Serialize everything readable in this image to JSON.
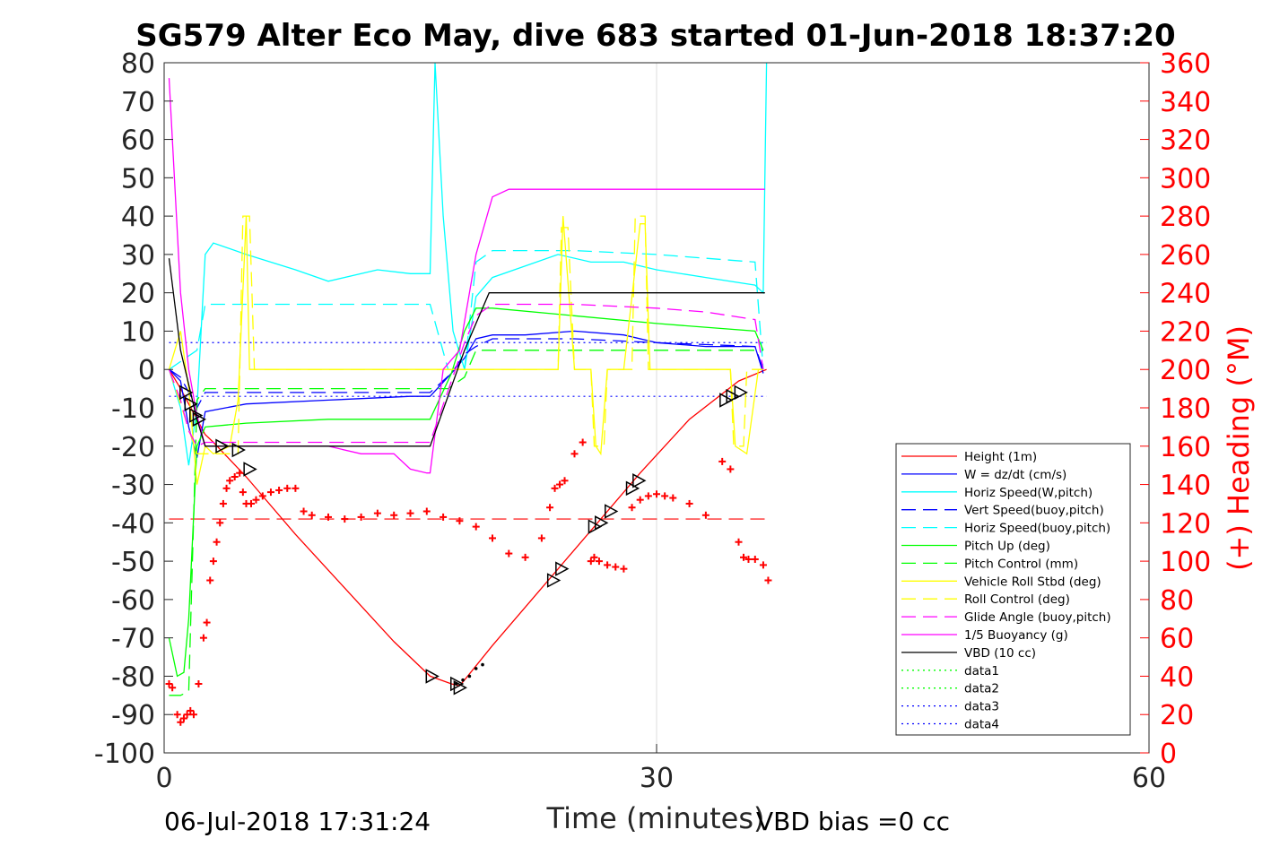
{
  "chart_data": {
    "type": "line",
    "title": "SG579 Alter Eco May, dive 683 started 01-Jun-2018 18:37:20",
    "xlabel": "Time (minutes)",
    "ylabel_right": "(+) Heading (°M)",
    "xlim": [
      0,
      60
    ],
    "ylim": [
      -100,
      80
    ],
    "ylim_right": [
      0,
      360
    ],
    "xticks": [
      0,
      30,
      60
    ],
    "yticks": [
      80,
      70,
      60,
      50,
      40,
      30,
      20,
      10,
      0,
      -10,
      -20,
      -30,
      -40,
      -50,
      -60,
      -70,
      -80,
      -90,
      -100
    ],
    "yticks_right": [
      360,
      340,
      320,
      300,
      280,
      260,
      240,
      220,
      200,
      180,
      160,
      140,
      120,
      100,
      80,
      60,
      40,
      20,
      0
    ],
    "grid": "x only, at 30",
    "legend_position": "bottom-right",
    "footer_left": "06-Jul-2018 17:31:24",
    "footer_right": "VBD bias =0 cc",
    "series": [
      {
        "name": "Height (1m)",
        "color": "#ff0000",
        "style": "solid",
        "x": [
          0.3,
          1,
          1.5,
          2,
          2.5,
          3,
          5,
          8,
          11,
          14,
          16.2,
          17.5,
          18,
          18.3,
          20,
          23,
          26,
          29,
          32,
          35,
          36.7
        ],
        "y": [
          0,
          -5,
          -9,
          -13,
          -17,
          -19,
          -28,
          -43,
          -57,
          -71,
          -80,
          -82,
          -82.5,
          -81,
          -72,
          -57,
          -42,
          -27,
          -13,
          -3,
          0
        ]
      },
      {
        "name": "W = dz/dt (cm/s)",
        "color": "#0000ff",
        "style": "solid",
        "x": [
          0.3,
          1,
          1.5,
          2,
          2.5,
          5,
          10,
          15,
          16.2,
          17.5,
          18.3,
          19,
          20,
          22,
          25,
          28,
          30,
          33,
          36,
          36.5
        ],
        "y": [
          0,
          -3,
          -15,
          -23,
          -11,
          -9,
          -8,
          -7,
          -7,
          -1,
          3,
          8,
          9,
          9,
          10,
          9,
          7,
          6,
          6,
          -1
        ]
      },
      {
        "name": "Horiz Speed(W,pitch)",
        "color": "#00ffff",
        "style": "solid",
        "x": [
          0.3,
          1,
          1.5,
          2,
          2.5,
          3,
          5,
          8,
          10,
          13,
          15,
          16.2,
          16.5,
          17,
          17.6,
          18.3,
          19,
          20,
          22,
          24,
          26,
          28,
          30,
          33,
          36,
          36.5,
          36.7
        ],
        "y": [
          0,
          -10,
          -25,
          -10,
          30,
          33,
          30,
          26,
          23,
          26,
          25,
          25,
          80,
          40,
          10,
          0,
          19,
          24,
          27,
          30,
          28,
          28,
          26,
          24,
          22,
          20,
          80
        ]
      },
      {
        "name": "Vert Speed(buoy,pitch)",
        "color": "#0000ff",
        "style": "dash",
        "x": [
          0.3,
          1,
          2,
          2.5,
          5,
          10,
          15,
          16.2,
          17.5,
          18.3,
          19,
          20,
          25,
          30,
          36,
          36.5
        ],
        "y": [
          0,
          -2,
          -10,
          -6,
          -6,
          -6,
          -6,
          -6,
          -1,
          4,
          6,
          8,
          8,
          7,
          6,
          0
        ]
      },
      {
        "name": "Horiz Speed(buoy,pitch)",
        "color": "#00ffff",
        "style": "dash",
        "x": [
          0.3,
          2,
          2.5,
          5,
          10,
          15,
          16.2,
          17.3,
          17.8,
          18.3,
          19,
          20,
          25,
          30,
          36,
          36.5
        ],
        "y": [
          0,
          5,
          17,
          17,
          17,
          17,
          17,
          0,
          0,
          0,
          28,
          31,
          31,
          30,
          28,
          0
        ]
      },
      {
        "name": "Pitch Up (deg)",
        "color": "#00ff00",
        "style": "solid",
        "x": [
          0.3,
          0.8,
          1.2,
          1.5,
          2,
          2.5,
          5,
          10,
          15,
          16.2,
          17.5,
          18.3,
          19,
          20,
          25,
          30,
          36,
          36.5
        ],
        "y": [
          -70,
          -80,
          -79,
          -65,
          -20,
          -15,
          -14,
          -13,
          -13,
          -13,
          -1,
          10,
          16,
          16,
          14,
          12,
          10,
          5
        ]
      },
      {
        "name": "Pitch Control (mm)",
        "color": "#00ff00",
        "style": "dash",
        "x": [
          0.3,
          1,
          1.5,
          2,
          2.5,
          5,
          10,
          15,
          16.2,
          17.3,
          18.3,
          19,
          20,
          25,
          30,
          36,
          36.5
        ],
        "y": [
          -85,
          -85,
          -84,
          -8,
          -5,
          -5,
          -5,
          -5,
          -5,
          -5,
          -2,
          5,
          5,
          5,
          5,
          5,
          5
        ]
      },
      {
        "name": "Vehicle Roll Stbd (deg)",
        "color": "#ffff00",
        "style": "solid",
        "x": [
          0.3,
          1,
          1.5,
          2,
          2.5,
          3,
          4,
          4.5,
          5,
          5.2,
          5.4,
          6,
          10,
          15,
          16.2,
          17.5,
          18.3,
          19,
          20,
          22,
          24,
          24.3,
          25,
          26,
          26.3,
          26.6,
          27,
          28,
          29,
          29.3,
          29.6,
          30,
          33,
          34.5,
          34.8,
          35.5,
          36.2,
          36.5
        ],
        "y": [
          0,
          10,
          -5,
          -30,
          -20,
          -22,
          -20,
          -8,
          40,
          0,
          0,
          0,
          0,
          0,
          0,
          0,
          0,
          0,
          0,
          0,
          0,
          40,
          0,
          0,
          -20,
          -22,
          0,
          0,
          38,
          38,
          0,
          0,
          0,
          0,
          -20,
          -22,
          0,
          0
        ]
      },
      {
        "name": "Roll Control (deg)",
        "color": "#ffff00",
        "style": "dash",
        "x": [
          0.3,
          2,
          3,
          4.5,
          4.8,
          5.2,
          5.5,
          10,
          16.2,
          18.3,
          20,
          24,
          24.2,
          24.6,
          25,
          26,
          26.2,
          26.8,
          27,
          28.5,
          28.7,
          29.3,
          29.5,
          34.5,
          34.7,
          35.3,
          35.5,
          36.5
        ],
        "y": [
          0,
          -22,
          -22,
          -22,
          40,
          40,
          0,
          0,
          0,
          0,
          0,
          0,
          37,
          37,
          0,
          0,
          -20,
          -20,
          0,
          0,
          40,
          40,
          0,
          0,
          -20,
          -20,
          0,
          0
        ]
      },
      {
        "name": "Glide Angle (buoy,pitch)",
        "color": "#ff00ff",
        "style": "dash",
        "x": [
          0.3,
          1,
          1.5,
          2,
          2.5,
          5,
          10,
          15,
          16.2,
          17.5,
          18.3,
          19,
          20,
          25,
          30,
          33,
          36,
          36.5
        ],
        "y": [
          0,
          -8,
          -16,
          -20,
          -19,
          -19,
          -19,
          -19,
          -19,
          -3,
          7,
          14,
          17,
          17,
          16,
          15,
          13,
          0
        ]
      },
      {
        "name": "1/5 Buoyancy (g)",
        "color": "#ff00ff",
        "style": "solid",
        "x": [
          0.3,
          1,
          1.5,
          2,
          2.5,
          5,
          10,
          12,
          14,
          15,
          16,
          16.2,
          17,
          18,
          19,
          20,
          21,
          25,
          30,
          35,
          36.6
        ],
        "y": [
          76,
          20,
          0,
          -12,
          -20,
          -20,
          -20,
          -22,
          -22,
          -26,
          -27,
          -27,
          0,
          5,
          30,
          45,
          47,
          47,
          47,
          47,
          47
        ]
      },
      {
        "name": "VBD (10 cc)",
        "color": "#000000",
        "style": "solid",
        "x": [
          0.3,
          1,
          2,
          2.5,
          5,
          10,
          15,
          16.2,
          18.3,
          19.8,
          20.5,
          25,
          30,
          36.6
        ],
        "y": [
          29,
          5,
          -13,
          -20,
          -20,
          -20,
          -20,
          -20,
          5,
          20,
          20,
          20,
          20,
          20
        ]
      },
      {
        "name": "data1",
        "color": "#00ff00",
        "style": "dot",
        "x": [],
        "y": []
      },
      {
        "name": "data2",
        "color": "#00ff00",
        "style": "dot",
        "x": [],
        "y": []
      },
      {
        "name": "data3",
        "color": "#0000ff",
        "style": "dot",
        "x": [],
        "y": []
      },
      {
        "name": "data4",
        "color": "#0000ff",
        "style": "dot",
        "x": [],
        "y": []
      }
    ],
    "reference_lines": [
      {
        "color": "#0000ff",
        "style": "dot",
        "x": [
          0.3,
          36.7
        ],
        "y": [
          7,
          7
        ]
      },
      {
        "color": "#0000ff",
        "style": "dot",
        "x": [
          0.3,
          36.7
        ],
        "y": [
          -7,
          -7
        ]
      },
      {
        "color": "#ff0000",
        "style": "dash",
        "x": [
          0.3,
          36.7
        ],
        "y": [
          -39,
          -39
        ]
      }
    ],
    "heading_points": {
      "color": "#ff0000",
      "x": [
        0.3,
        0.5,
        0.8,
        1,
        1.2,
        1.4,
        1.6,
        1.8,
        2.1,
        2.4,
        2.6,
        2.8,
        3.0,
        3.2,
        3.4,
        3.6,
        3.8,
        4.0,
        4.3,
        4.6,
        4.8,
        5.0,
        5.3,
        5.6,
        6,
        6.5,
        7,
        7.5,
        8,
        8.5,
        9,
        10,
        11,
        12,
        13,
        14,
        15,
        16,
        17,
        18,
        19,
        20,
        21,
        22,
        23,
        23.5,
        23.8,
        24.1,
        24.4,
        25,
        25.5,
        26,
        26.2,
        26.5,
        27,
        27.5,
        28,
        28.5,
        29,
        29.5,
        30,
        30.5,
        31,
        32,
        33,
        34,
        34.5,
        35,
        35.3,
        35.6,
        36,
        36.5,
        36.8
      ],
      "y": [
        36,
        34,
        20,
        16,
        18,
        20,
        22,
        20,
        36,
        60,
        68,
        90,
        100,
        110,
        120,
        130,
        138,
        142,
        144,
        146,
        136,
        130,
        130,
        132,
        134,
        136,
        137,
        138,
        138,
        126,
        124,
        123,
        122,
        123,
        125,
        124,
        125,
        126,
        123,
        121,
        118,
        112,
        104,
        102,
        112,
        128,
        138,
        140,
        142,
        156,
        162,
        100,
        102,
        100,
        98,
        97,
        96,
        128,
        132,
        134,
        135,
        134,
        133,
        130,
        124,
        152,
        148,
        110,
        102,
        101,
        101,
        98,
        90
      ]
    },
    "vertex_markers": {
      "color": "#000000",
      "x": [
        1.3,
        1.6,
        1.9,
        2.1,
        3.5,
        4.5,
        5.2,
        16.3,
        17.8,
        18,
        23.7,
        24.2,
        26.2,
        26.6,
        27.2,
        28.5,
        28.9,
        34.2,
        34.6,
        35.1
      ],
      "y": [
        -6,
        -9,
        -12,
        -13,
        -20,
        -21,
        -26,
        -80,
        -82,
        -83,
        -55,
        -52,
        -41,
        -40,
        -37,
        -31,
        -29,
        -8,
        -7,
        -6
      ]
    },
    "vbd_dots": {
      "color": "#000000",
      "x": [
        17.8,
        18.2,
        18.6,
        19,
        19.4
      ],
      "y": [
        -82,
        -81,
        -80,
        -78,
        -77
      ]
    }
  }
}
